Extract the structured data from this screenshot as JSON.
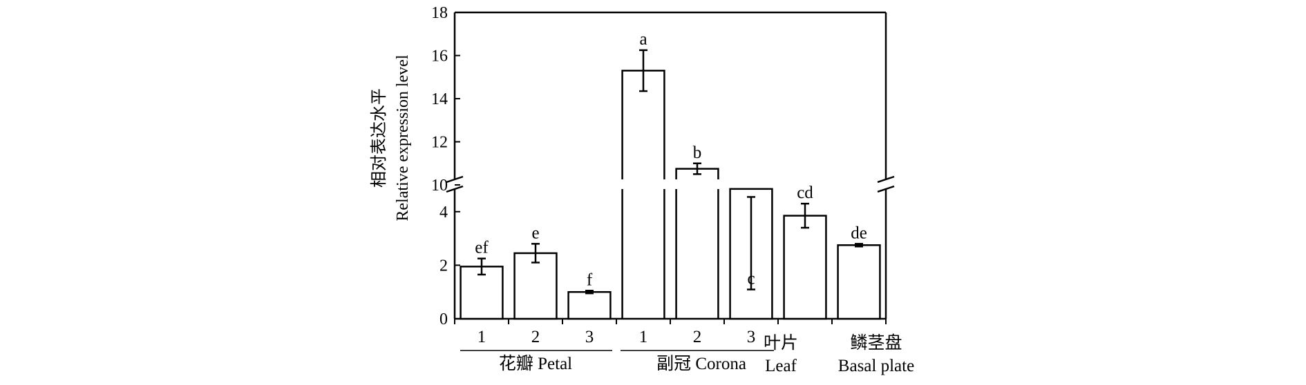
{
  "chart_data": {
    "type": "bar",
    "ylabel_zh": "相对表达水平",
    "ylabel_en": "Relative expression level",
    "y_break": [
      5,
      10
    ],
    "ylim": [
      0,
      18
    ],
    "y_ticks": [
      "0",
      "2",
      "4",
      "10",
      "12",
      "14",
      "16",
      "18"
    ],
    "categories": [
      "1",
      "2",
      "3",
      "1",
      "2",
      "3",
      "",
      ""
    ],
    "values": [
      1.95,
      2.45,
      1.0,
      15.3,
      10.75,
      4.85,
      3.85,
      2.75
    ],
    "errors": [
      0.3,
      0.35,
      0.05,
      0.95,
      0.25,
      0.3,
      0.45,
      0.05
    ],
    "letters": [
      "ef",
      "e",
      "f",
      "a",
      "b",
      "c",
      "cd",
      "de"
    ],
    "groups": [
      {
        "zh": "花瓣",
        "en": "Petal",
        "label": "花瓣 Petal"
      },
      {
        "zh": "副冠",
        "en": "Corona",
        "label": "副冠 Corona"
      },
      {
        "zh": "叶片",
        "en": "Leaf"
      },
      {
        "zh": "鳞茎盘",
        "en": "Basal plate"
      }
    ]
  }
}
